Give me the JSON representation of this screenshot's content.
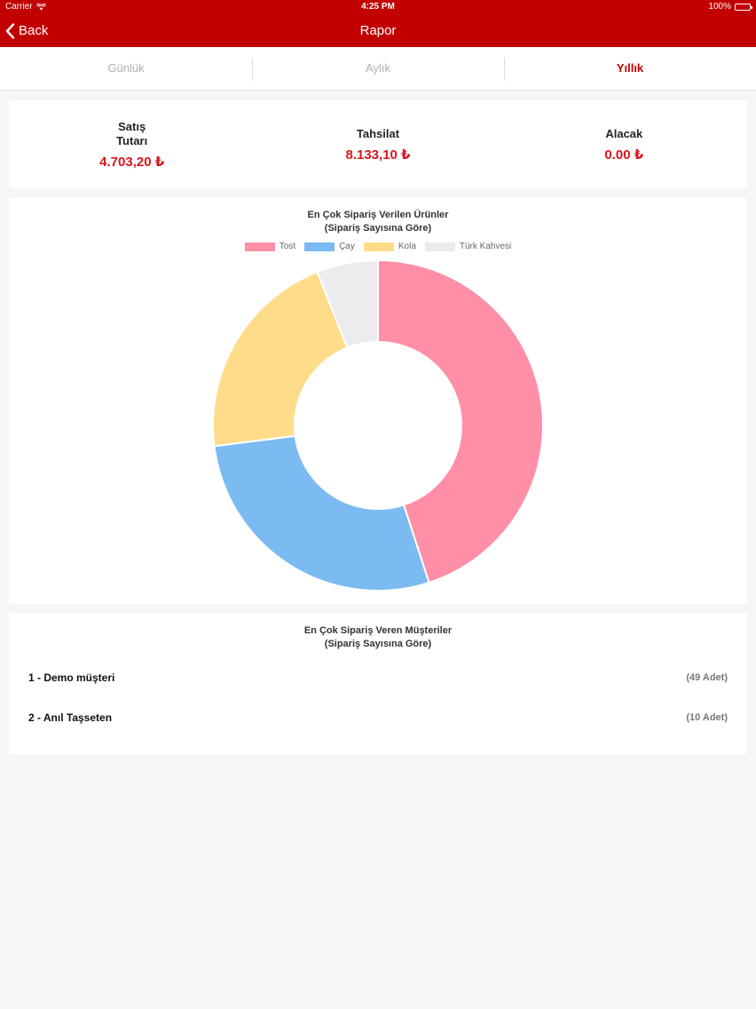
{
  "status": {
    "carrier": "Carrier",
    "time": "4:25 PM",
    "battery": "100%"
  },
  "nav": {
    "back_label": "Back",
    "title": "Rapor"
  },
  "tabs": [
    {
      "label": "Günlük",
      "active": false
    },
    {
      "label": "Aylık",
      "active": false
    },
    {
      "label": "Yıllık",
      "active": true
    }
  ],
  "summary": {
    "sales": {
      "label": "Satış Tutarı",
      "value": "4.703,20 ₺"
    },
    "collection": {
      "label": "Tahsilat",
      "value": "8.133,10 ₺"
    },
    "receivable": {
      "label": "Alacak",
      "value": "0.00 ₺"
    }
  },
  "products": {
    "title_line1": "En Çok Sipariş Verilen Ürünler",
    "title_line2": "(Sipariş Sayısına Göre)"
  },
  "customers": {
    "title_line1": "En Çok Sipariş Veren Müşteriler",
    "title_line2": "(Sipariş Sayısına Göre)",
    "rows": [
      {
        "name": "1 - Demo müşteri",
        "count": "(49 Adet)"
      },
      {
        "name": "2 - Anıl Taşseten",
        "count": "(10 Adet)"
      }
    ]
  },
  "chart_data": {
    "type": "pie",
    "donut": true,
    "title": "En Çok Sipariş Verilen Ürünler (Sipariş Sayısına Göre)",
    "legend_position": "top",
    "categories": [
      "Tost",
      "Çay",
      "Kola",
      "Türk Kahvesi"
    ],
    "values": [
      45,
      28,
      21,
      6
    ],
    "colors": [
      "#ff8fa6",
      "#7bbbf1",
      "#fedc8a",
      "#ececee"
    ]
  }
}
